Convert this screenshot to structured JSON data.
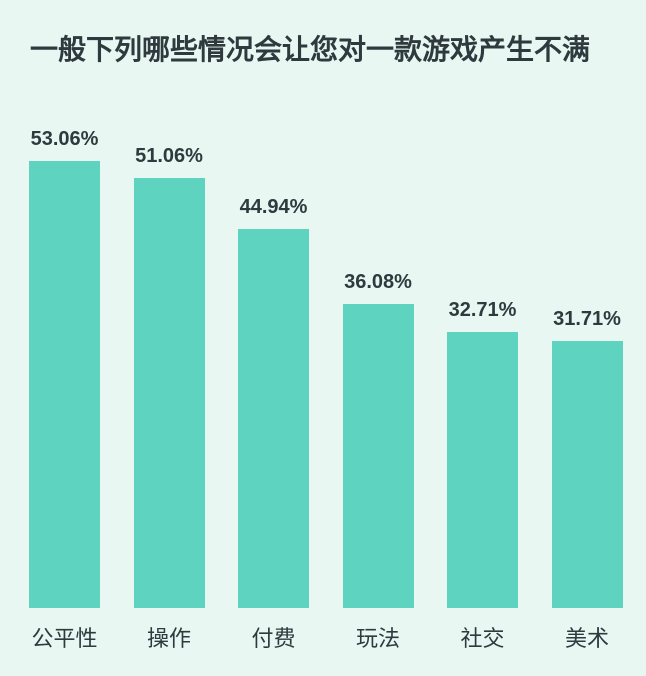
{
  "chart_data": {
    "type": "bar",
    "title": "一般下列哪些情况会让您对一款游戏产生不满",
    "categories": [
      "公平性",
      "操作",
      "付费",
      "玩法",
      "社交",
      "美术"
    ],
    "values": [
      53.06,
      51.06,
      44.94,
      36.08,
      32.71,
      31.71
    ],
    "value_labels": [
      "53.06%",
      "51.06%",
      "44.94%",
      "36.08%",
      "32.71%",
      "31.71%"
    ],
    "xlabel": "",
    "ylabel": "",
    "ylim": [
      0,
      55
    ],
    "grid": false,
    "legend": "none",
    "axes_visible": false,
    "colors": {
      "bar": "#5ED3BF",
      "background": "#E8F7F2",
      "text": "#2E3A3E"
    }
  }
}
